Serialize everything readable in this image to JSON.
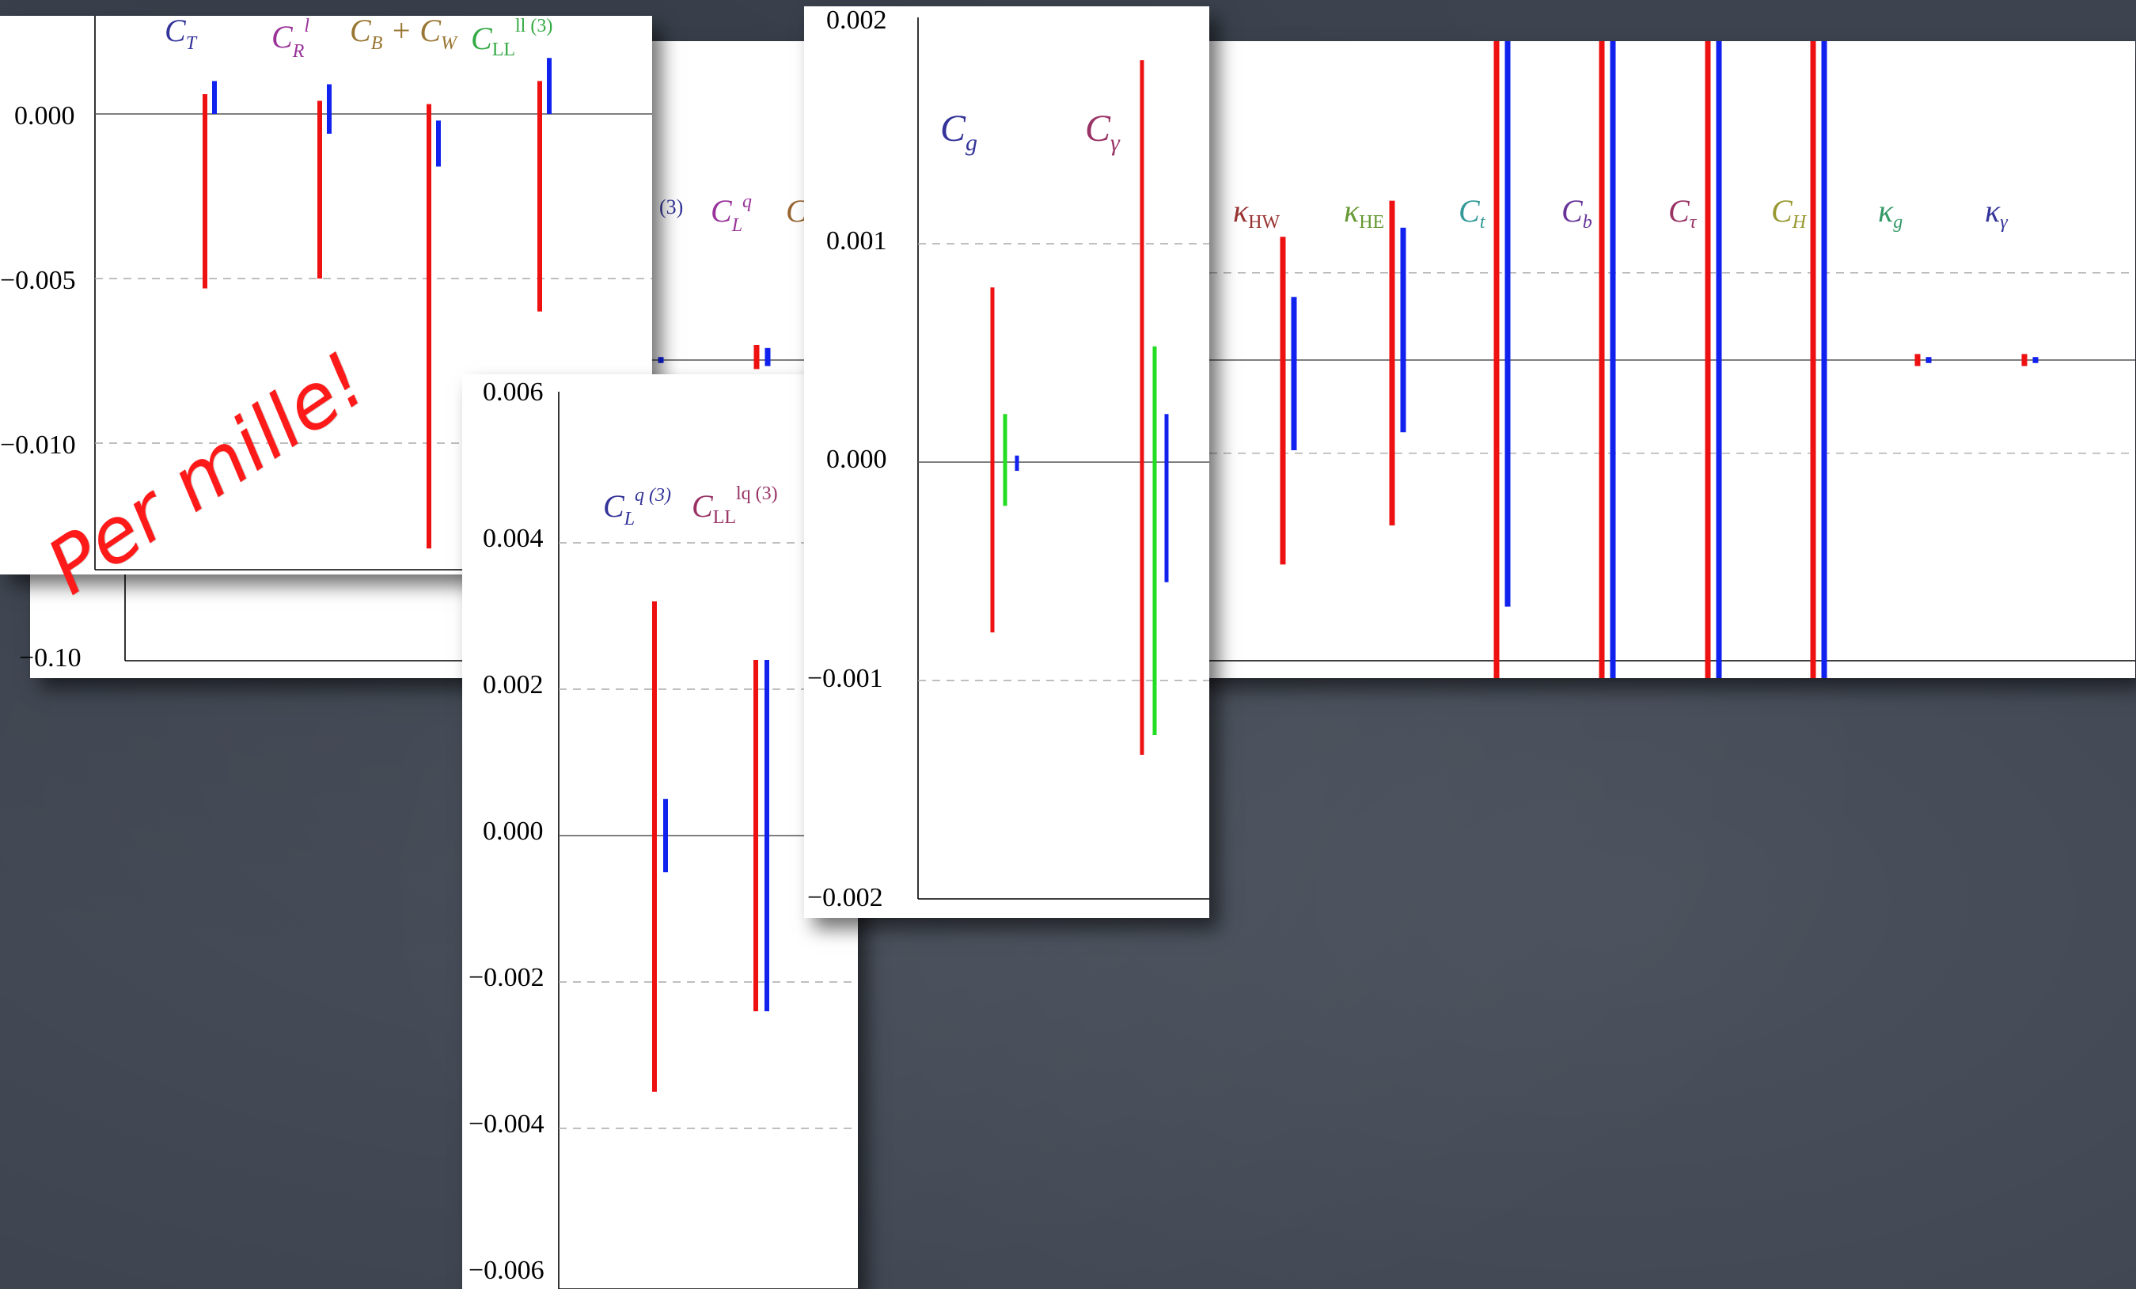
{
  "overlay_text": "Per mille!",
  "colors": {
    "red": "#ee1111",
    "blue": "#1122ee",
    "green": "#22dd22"
  },
  "chart_data": [
    {
      "id": "wide",
      "type": "interval",
      "ylim": [
        -0.1,
        0.1
      ],
      "tick_labels": [
        "−0.10"
      ],
      "labels": [
        "(3)",
        "C_L^q",
        "C",
        "κ_HW",
        "κ_HE",
        "C_t",
        "C_b",
        "C_τ",
        "C_H",
        "κ_g",
        "κ_γ"
      ],
      "series": [
        {
          "color": "red",
          "intervals": [
            {
              "x": "C_L^q",
              "low": -0.003,
              "high": 0.005
            },
            {
              "x": "κ_HW",
              "low": -0.068,
              "high": 0.041
            },
            {
              "x": "κ_HE",
              "low": -0.055,
              "high": 0.053
            },
            {
              "x": "C_t",
              "low": -0.2,
              "high": 0.2
            },
            {
              "x": "C_b",
              "low": -0.2,
              "high": 0.2
            },
            {
              "x": "C_τ",
              "low": -0.2,
              "high": 0.2
            },
            {
              "x": "C_H",
              "low": -0.2,
              "high": 0.2
            },
            {
              "x": "κ_g",
              "low": -0.002,
              "high": 0.002
            },
            {
              "x": "κ_γ",
              "low": -0.002,
              "high": 0.002
            }
          ]
        },
        {
          "color": "blue",
          "intervals": [
            {
              "x": "(3)",
              "low": -0.001,
              "high": 0.001
            },
            {
              "x": "C_L^q",
              "low": -0.002,
              "high": 0.004
            },
            {
              "x": "κ_HW",
              "low": -0.03,
              "high": 0.021
            },
            {
              "x": "κ_HE",
              "low": -0.024,
              "high": 0.044
            },
            {
              "x": "C_t",
              "low": -0.082,
              "high": 0.2
            },
            {
              "x": "C_b",
              "low": -0.2,
              "high": 0.2
            },
            {
              "x": "C_τ",
              "low": -0.2,
              "high": 0.2
            },
            {
              "x": "C_H",
              "low": -0.2,
              "high": 0.2
            },
            {
              "x": "κ_g",
              "low": -0.001,
              "high": 0.001
            },
            {
              "x": "κ_γ",
              "low": -0.001,
              "high": 0.001
            }
          ]
        }
      ]
    },
    {
      "id": "top-left",
      "type": "interval",
      "ylim": [
        -0.013,
        0.003
      ],
      "tick_labels": [
        "0.000",
        "−0.005",
        "−0.010"
      ],
      "labels": [
        "C_T",
        "C_R^l",
        "C_B + C_W",
        "C_LL^ll(3)"
      ],
      "series": [
        {
          "color": "red",
          "intervals": [
            {
              "x": "C_T",
              "low": -0.0053,
              "high": 0.0006
            },
            {
              "x": "C_R^l",
              "low": -0.005,
              "high": 0.0004
            },
            {
              "x": "C_B + C_W",
              "low": -0.0132,
              "high": 0.0003
            },
            {
              "x": "C_LL^ll(3)",
              "low": -0.006,
              "high": 0.001
            }
          ]
        },
        {
          "color": "blue",
          "intervals": [
            {
              "x": "C_T",
              "low": 0.0,
              "high": 0.001
            },
            {
              "x": "C_R^l",
              "low": -0.0006,
              "high": 0.0009
            },
            {
              "x": "C_B + C_W",
              "low": -0.0016,
              "high": -0.0002
            },
            {
              "x": "C_LL^ll(3)",
              "low": 0.0,
              "high": 0.0017
            }
          ]
        }
      ]
    },
    {
      "id": "middle",
      "type": "interval",
      "ylim": [
        -0.006,
        0.006
      ],
      "tick_labels": [
        "0.006",
        "0.004",
        "0.002",
        "0.000",
        "−0.002",
        "−0.004",
        "−0.006"
      ],
      "labels": [
        "C_L^q(3)",
        "C_LL^lq(3)"
      ],
      "series": [
        {
          "color": "red",
          "intervals": [
            {
              "x": "C_L^q(3)",
              "low": -0.0035,
              "high": 0.0032
            },
            {
              "x": "C_LL^lq(3)",
              "low": -0.0024,
              "high": 0.0024
            }
          ]
        },
        {
          "color": "blue",
          "intervals": [
            {
              "x": "C_L^q(3)",
              "low": -0.0005,
              "high": 0.0005
            },
            {
              "x": "C_LL^lq(3)",
              "low": -0.0024,
              "high": 0.0024
            }
          ]
        }
      ]
    },
    {
      "id": "right",
      "type": "interval",
      "ylim": [
        -0.002,
        0.002
      ],
      "tick_labels": [
        "0.002",
        "0.001",
        "0.000",
        "−0.001",
        "−0.002"
      ],
      "labels": [
        "C_g",
        "C_γ"
      ],
      "series": [
        {
          "color": "red",
          "intervals": [
            {
              "x": "C_g",
              "low": -0.00078,
              "high": 0.0008
            },
            {
              "x": "C_γ",
              "low": -0.00134,
              "high": 0.00184
            }
          ]
        },
        {
          "color": "green",
          "intervals": [
            {
              "x": "C_g",
              "low": -0.0002,
              "high": 0.00022
            },
            {
              "x": "C_γ",
              "low": -0.00125,
              "high": 0.00053
            }
          ]
        },
        {
          "color": "blue",
          "intervals": [
            {
              "x": "C_g",
              "low": -4e-05,
              "high": 3e-05
            },
            {
              "x": "C_γ",
              "low": -0.00055,
              "high": 0.00022
            }
          ]
        }
      ]
    }
  ]
}
